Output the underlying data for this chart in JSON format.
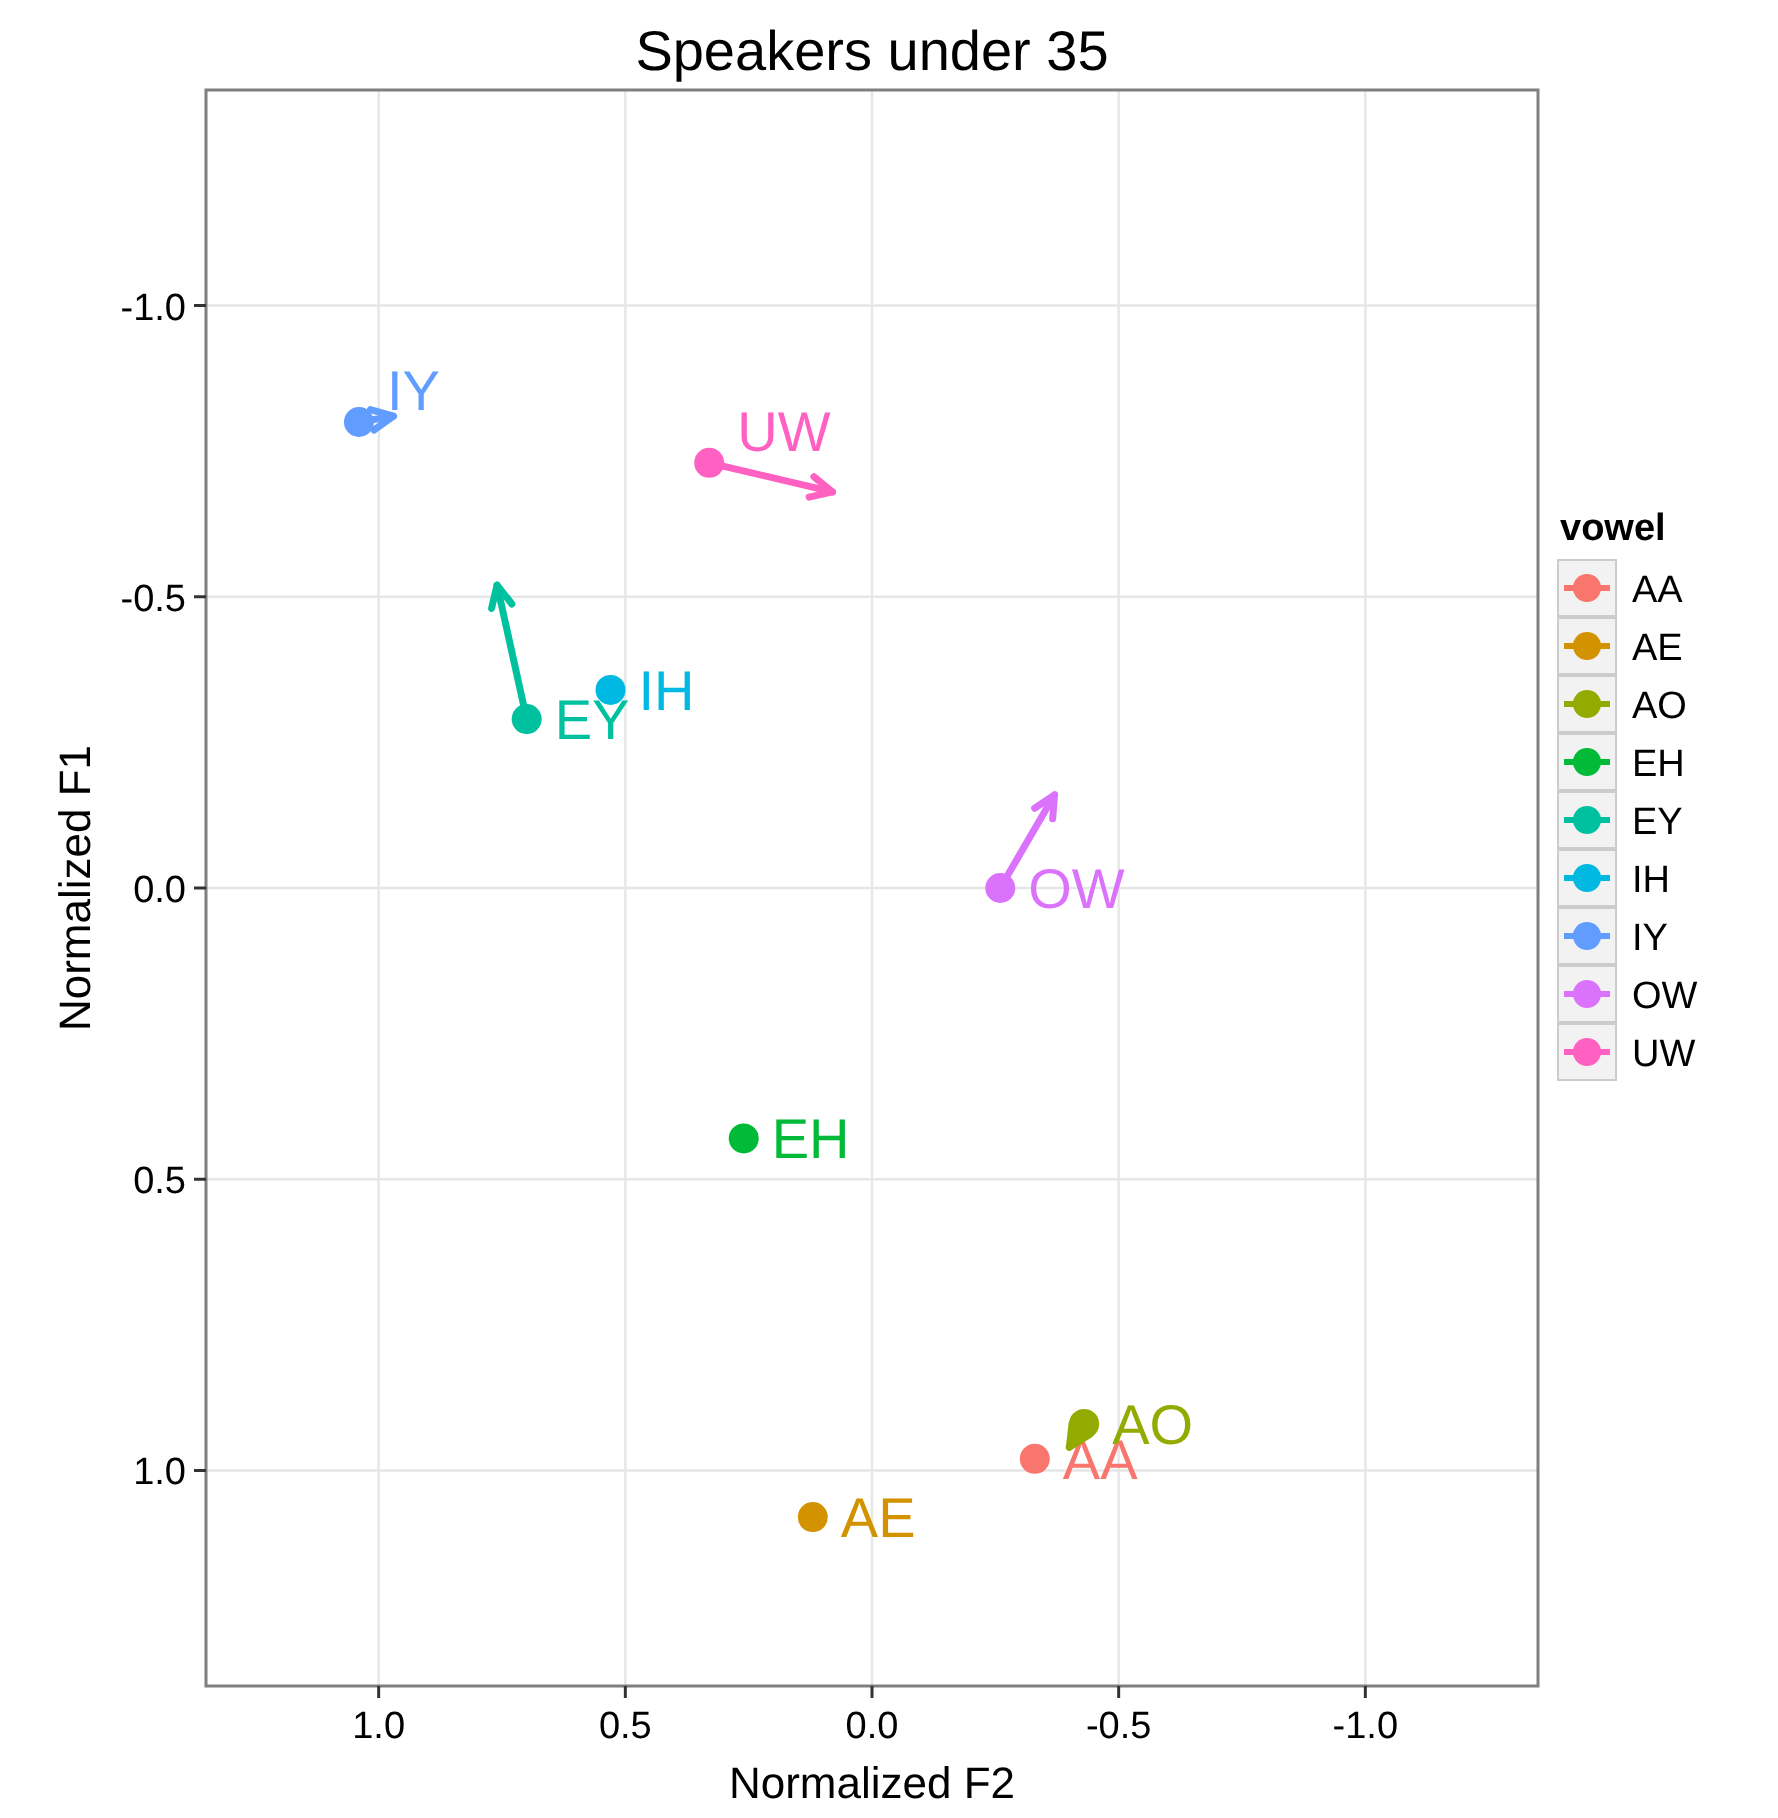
{
  "chart_data": {
    "type": "scatter",
    "title": "Speakers under 35",
    "xlabel": "Normalized F2",
    "ylabel": "Normalized F1",
    "legend_title": "vowel",
    "legend": "right",
    "grid": true,
    "marker": "circle",
    "xlim": [
      1.35,
      -1.35
    ],
    "ylim": [
      1.37,
      -1.37
    ],
    "xticks": [
      {
        "value": 1,
        "label": "1.0"
      },
      {
        "value": 0.5,
        "label": "0.5"
      },
      {
        "value": 0,
        "label": "0.0"
      },
      {
        "value": -0.5,
        "label": "-0.5"
      },
      {
        "value": -1,
        "label": "-1.0"
      }
    ],
    "yticks": [
      {
        "value": -1,
        "label": "-1.0"
      },
      {
        "value": -0.5,
        "label": "-0.5"
      },
      {
        "value": 0,
        "label": "0.0"
      },
      {
        "value": 0.5,
        "label": "0.5"
      },
      {
        "value": 1,
        "label": "1.0"
      }
    ],
    "series": [
      {
        "name": "AA",
        "color": "#f8766d",
        "x": [
          -0.33
        ],
        "values": [
          0.98
        ]
      },
      {
        "name": "AE",
        "color": "#d39200",
        "x": [
          0.12
        ],
        "values": [
          1.08
        ]
      },
      {
        "name": "AO",
        "color": "#93aa00",
        "type": "line",
        "x": [
          -0.43,
          -0.4
        ],
        "values": [
          0.92,
          0.96
        ]
      },
      {
        "name": "EH",
        "color": "#00ba38",
        "x": [
          0.26
        ],
        "values": [
          0.43
        ]
      },
      {
        "name": "EY",
        "color": "#00c19f",
        "type": "line",
        "x": [
          0.7,
          0.76
        ],
        "values": [
          -0.29,
          -0.52
        ]
      },
      {
        "name": "IH",
        "color": "#00b9e3",
        "x": [
          0.53
        ],
        "values": [
          -0.34
        ]
      },
      {
        "name": "IY",
        "color": "#619cff",
        "type": "line",
        "x": [
          1.04,
          0.97
        ],
        "values": [
          -0.8,
          -0.81
        ]
      },
      {
        "name": "OW",
        "color": "#db72fb",
        "type": "line",
        "x": [
          -0.26,
          -0.37
        ],
        "values": [
          0,
          -0.16
        ]
      },
      {
        "name": "UW",
        "color": "#ff61c3",
        "type": "line",
        "x": [
          0.33,
          0.08
        ],
        "values": [
          -0.73,
          -0.68
        ]
      }
    ]
  }
}
